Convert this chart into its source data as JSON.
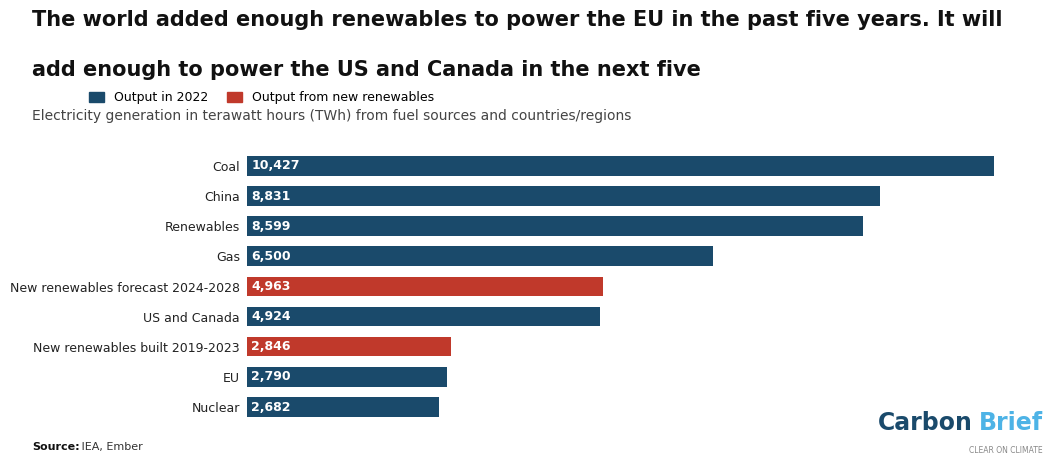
{
  "title_line1": "The world added enough renewables to power the EU in the past five years. It will",
  "title_line2": "add enough to power the US and Canada in the next five",
  "subtitle": "Electricity generation in terawatt hours (TWh) from fuel sources and countries/regions",
  "source_bold": "Source:",
  "source_rest": " IEA, Ember",
  "categories": [
    "Coal",
    "China",
    "Renewables",
    "Gas",
    "New renewables forecast 2024-2028",
    "US and Canada",
    "New renewables built 2019-2023",
    "EU",
    "Nuclear"
  ],
  "values": [
    10427,
    8831,
    8599,
    6500,
    4963,
    4924,
    2846,
    2790,
    2682
  ],
  "colors": [
    "#1a4a6b",
    "#1a4a6b",
    "#1a4a6b",
    "#1a4a6b",
    "#c0392b",
    "#1a4a6b",
    "#c0392b",
    "#1a4a6b",
    "#1a4a6b"
  ],
  "bar_color_blue": "#1a4a6b",
  "bar_color_red": "#c0392b",
  "legend_blue": "Output in 2022",
  "legend_red": "Output from new renewables",
  "xlim": [
    0,
    11000
  ],
  "value_label_color": "#ffffff",
  "background_color": "#ffffff",
  "title_fontsize": 15,
  "subtitle_fontsize": 10,
  "label_fontsize": 9,
  "value_fontsize": 9,
  "carbonbrief_color_dark": "#1a4a6b",
  "carbonbrief_color_light": "#4db3e6"
}
